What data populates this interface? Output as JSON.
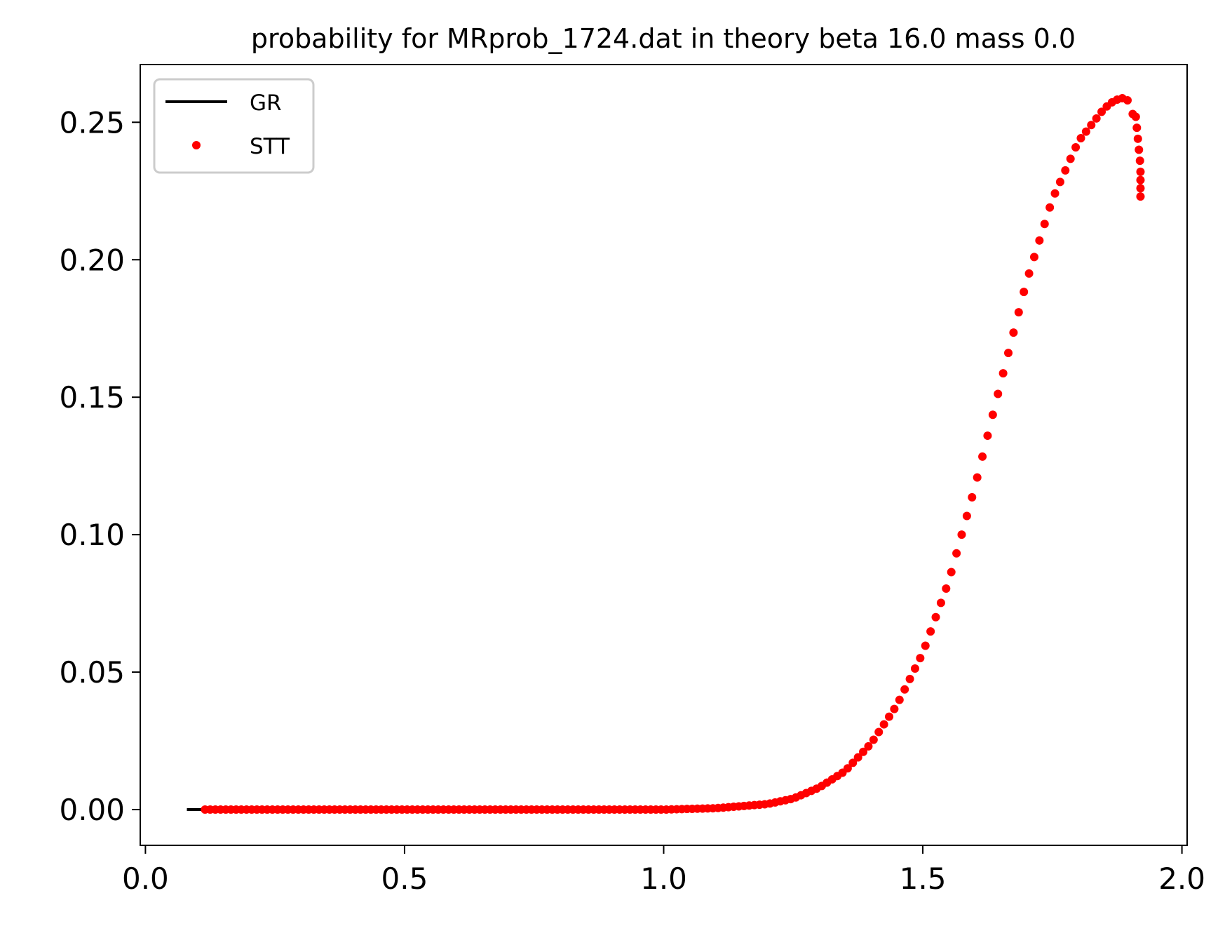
{
  "chart_data": {
    "type": "scatter",
    "title": "probability for MRprob_1724.dat in theory beta 16.0 mass 0.0",
    "xlabel": "",
    "ylabel": "",
    "xlim": [
      -0.01,
      2.01
    ],
    "ylim": [
      -0.013,
      0.271
    ],
    "xticks": [
      0.0,
      0.5,
      1.0,
      1.5,
      2.0
    ],
    "xtick_labels": [
      "0.0",
      "0.5",
      "1.0",
      "1.5",
      "2.0"
    ],
    "yticks": [
      0.0,
      0.05,
      0.1,
      0.15,
      0.2,
      0.25
    ],
    "ytick_labels": [
      "0.00",
      "0.05",
      "0.10",
      "0.15",
      "0.20",
      "0.25"
    ],
    "grid": false,
    "legend_position": "upper-left",
    "series": [
      {
        "name": "GR",
        "kind": "line",
        "color": "#000000",
        "x": [
          0.08,
          0.115
        ],
        "y": [
          0.0,
          0.0
        ]
      },
      {
        "name": "STT",
        "kind": "scatter",
        "color": "#ff0000",
        "x_start": 0.115,
        "x_end": 1.92,
        "x_step": 0.01,
        "curve_x": [
          0.115,
          1.0,
          1.1,
          1.2,
          1.25,
          1.3,
          1.35,
          1.4,
          1.45,
          1.5,
          1.55,
          1.6,
          1.65,
          1.7,
          1.75,
          1.8,
          1.85,
          1.87,
          1.89,
          1.9,
          1.91,
          1.92
        ],
        "curve_y": [
          0.0,
          0.0,
          0.0005,
          0.002,
          0.004,
          0.008,
          0.014,
          0.024,
          0.038,
          0.057,
          0.083,
          0.117,
          0.155,
          0.192,
          0.222,
          0.243,
          0.255,
          0.258,
          0.259,
          0.257,
          0.249,
          0.222
        ],
        "tail_x": [
          1.911,
          1.913,
          1.915,
          1.917,
          1.919,
          1.92,
          1.92,
          1.92,
          1.92
        ],
        "tail_y": [
          0.252,
          0.248,
          0.244,
          0.24,
          0.236,
          0.232,
          0.229,
          0.226,
          0.223
        ]
      }
    ]
  }
}
